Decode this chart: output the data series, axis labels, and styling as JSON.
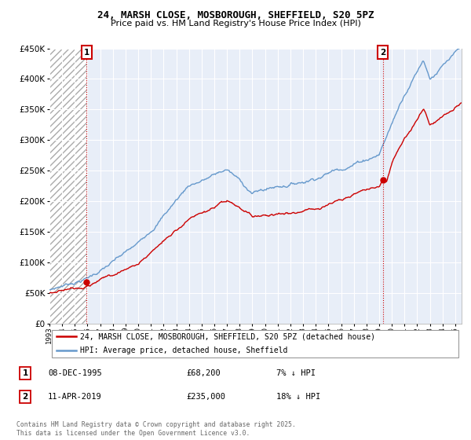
{
  "title": "24, MARSH CLOSE, MOSBOROUGH, SHEFFIELD, S20 5PZ",
  "subtitle": "Price paid vs. HM Land Registry's House Price Index (HPI)",
  "legend_label_red": "24, MARSH CLOSE, MOSBOROUGH, SHEFFIELD, S20 5PZ (detached house)",
  "legend_label_blue": "HPI: Average price, detached house, Sheffield",
  "annotation1_date": "08-DEC-1995",
  "annotation1_price": "£68,200",
  "annotation1_hpi": "7% ↓ HPI",
  "annotation2_date": "11-APR-2019",
  "annotation2_price": "£235,000",
  "annotation2_hpi": "18% ↓ HPI",
  "footer": "Contains HM Land Registry data © Crown copyright and database right 2025.\nThis data is licensed under the Open Government Licence v3.0.",
  "ylim": [
    0,
    450000
  ],
  "yticks": [
    0,
    50000,
    100000,
    150000,
    200000,
    250000,
    300000,
    350000,
    400000,
    450000
  ],
  "red_color": "#cc0000",
  "blue_color": "#6699cc",
  "grid_color": "#cccccc",
  "point1_x": 1995.93,
  "point1_y": 68200,
  "point2_x": 2019.28,
  "point2_y": 235000,
  "xmin": 1993,
  "xmax": 2025.5
}
